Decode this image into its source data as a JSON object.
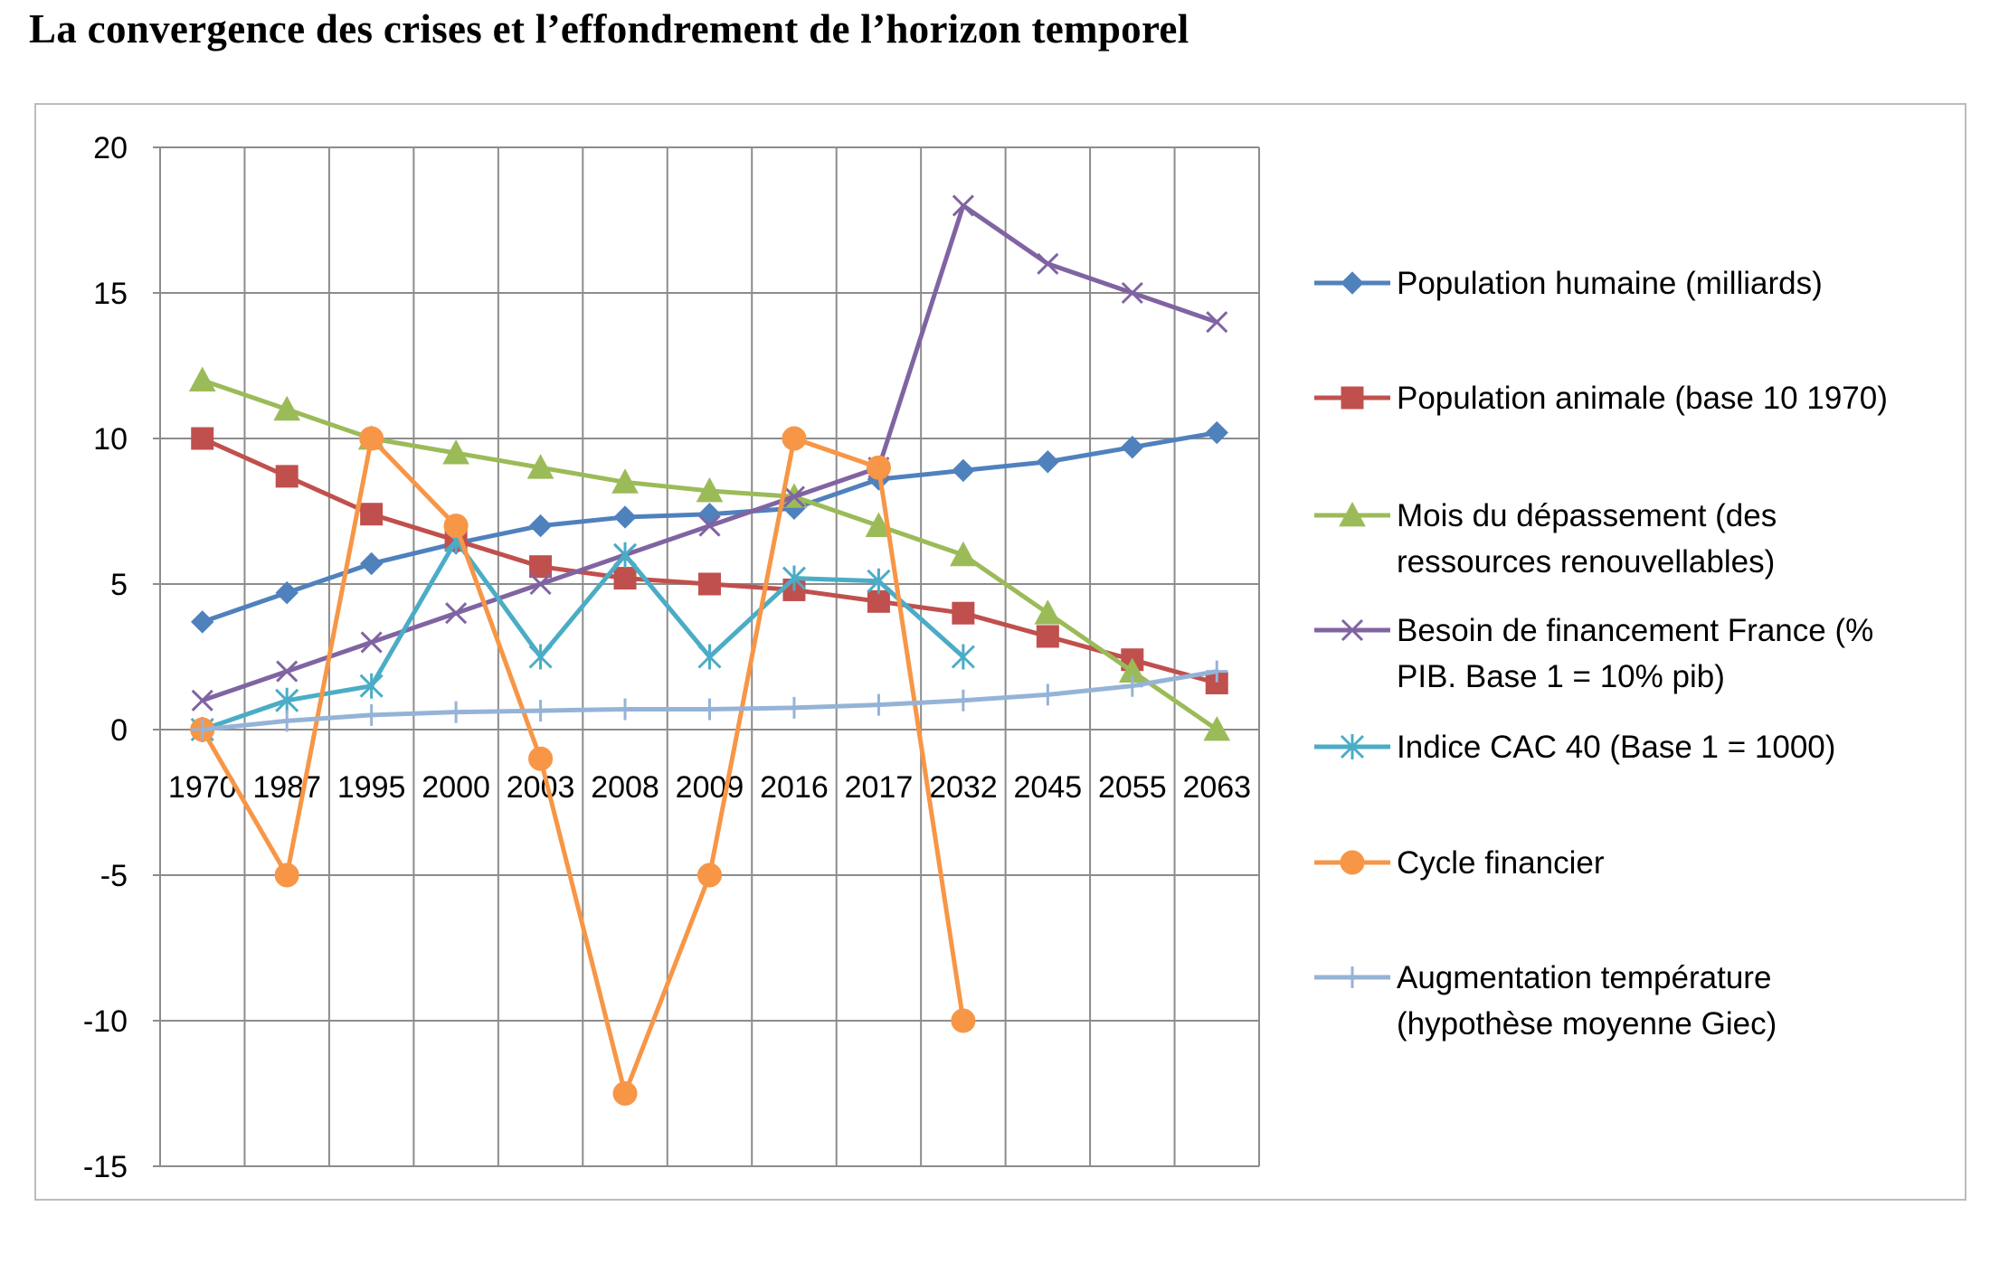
{
  "title": "La convergence des crises et l’effondrement de l’horizon temporel",
  "chart_data": {
    "type": "line",
    "title": "La convergence des crises et l’effondrement de l’horizon temporel",
    "xlabel": "",
    "ylabel": "",
    "ylim": [
      -15,
      20
    ],
    "yticks": [
      20,
      15,
      10,
      5,
      0,
      -5,
      -10,
      -15
    ],
    "grid": true,
    "legend_position": "right",
    "categories": [
      "1970",
      "1987",
      "1995",
      "2000",
      "2003",
      "2008",
      "2009",
      "2016",
      "2017",
      "2032",
      "2045",
      "2055",
      "2063"
    ],
    "series": [
      {
        "name": "Population humaine (milliards)",
        "legend_lines": [
          "Population humaine (milliards)"
        ],
        "color": "#4f81bd",
        "marker": "diamond",
        "values": [
          3.7,
          4.7,
          5.7,
          6.4,
          7.0,
          7.3,
          7.4,
          7.6,
          8.6,
          8.9,
          9.2,
          9.7,
          10.2
        ]
      },
      {
        "name": "Population animale (base 10 1970)",
        "legend_lines": [
          "Population animale (base 10 1970)"
        ],
        "color": "#c0504d",
        "marker": "square",
        "values": [
          10.0,
          8.7,
          7.4,
          6.5,
          5.6,
          5.2,
          5.0,
          4.8,
          4.4,
          4.0,
          3.2,
          2.4,
          1.6
        ]
      },
      {
        "name": "Mois du dépassement (des ressources renouvellables)",
        "legend_lines": [
          "Mois du dépassement  (des",
          "ressources renouvellables)"
        ],
        "color": "#9bbb59",
        "marker": "triangle",
        "values": [
          12.0,
          11.0,
          10.0,
          9.5,
          9.0,
          8.5,
          8.2,
          8.0,
          7.0,
          6.0,
          4.0,
          2.0,
          0.0
        ]
      },
      {
        "name": "Besoin de financement France (% PIB. Base 1 = 10% pib)",
        "legend_lines": [
          "Besoin de financement  France (%",
          "PIB. Base 1 = 10% pib)"
        ],
        "color": "#8064a2",
        "marker": "x",
        "values": [
          1.0,
          2.0,
          3.0,
          4.0,
          5.0,
          6.0,
          7.0,
          8.0,
          9.0,
          18.0,
          16.0,
          15.0,
          14.0
        ]
      },
      {
        "name": "Indice CAC 40 (Base 1 = 1000)",
        "legend_lines": [
          "Indice CAC 40 (Base 1 = 1000)"
        ],
        "color": "#4bacc6",
        "marker": "asterisk",
        "values": [
          0.0,
          1.0,
          1.5,
          6.5,
          2.5,
          6.0,
          2.5,
          5.2,
          5.1,
          2.5,
          null,
          null,
          null
        ]
      },
      {
        "name": "Cycle financier",
        "legend_lines": [
          "Cycle financier"
        ],
        "color": "#f79646",
        "marker": "circle",
        "values": [
          0.0,
          -5.0,
          10.0,
          7.0,
          -1.0,
          -12.5,
          -5.0,
          10.0,
          9.0,
          -10.0,
          null,
          null,
          null
        ]
      },
      {
        "name": "Augmentation température (hypothèse moyenne Giec)",
        "legend_lines": [
          "Augmentation température",
          "(hypothèse moyenne  Giec)"
        ],
        "color": "#95b3d7",
        "marker": "plus",
        "values": [
          0.0,
          0.3,
          0.5,
          0.6,
          0.65,
          0.7,
          0.7,
          0.75,
          0.85,
          1.0,
          1.2,
          1.5,
          2.0
        ]
      }
    ]
  }
}
